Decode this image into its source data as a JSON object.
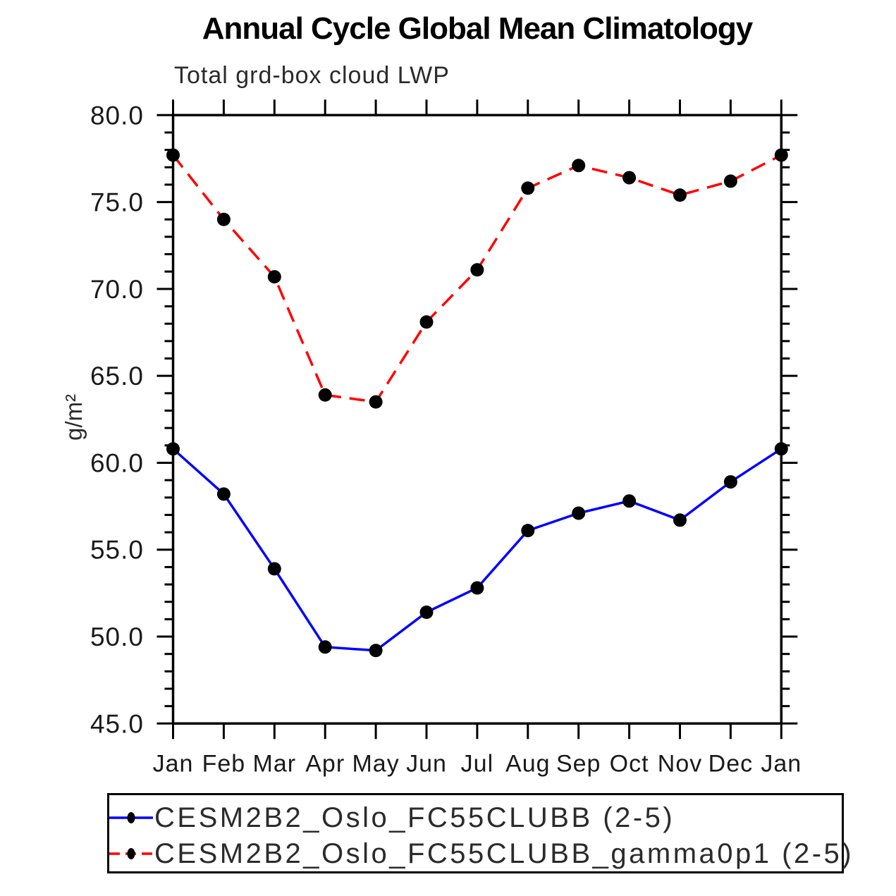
{
  "header": {
    "title": "Annual Cycle Global Mean Climatology",
    "subtitle": "Total grd-box cloud LWP"
  },
  "chart_data": {
    "type": "line",
    "title": "Annual Cycle Global Mean Climatology",
    "subtitle": "Total grd-box cloud LWP",
    "categories": [
      "Jan",
      "Feb",
      "Mar",
      "Apr",
      "May",
      "Jun",
      "Jul",
      "Aug",
      "Sep",
      "Oct",
      "Nov",
      "Dec",
      "Jan"
    ],
    "series": [
      {
        "name": "CESM2B2_Oslo_FC55CLUBB (2-5)",
        "color": "#0000ff",
        "line_style": "solid",
        "marker": "filled-circle",
        "marker_color": "#000000",
        "values": [
          60.8,
          58.2,
          53.9,
          49.4,
          49.2,
          51.4,
          52.8,
          56.1,
          57.1,
          57.8,
          56.7,
          58.9,
          60.8
        ]
      },
      {
        "name": "CESM2B2_Oslo_FC55CLUBB_gamma0p1 (2-5)",
        "color": "#ff0000",
        "line_style": "dashed",
        "marker": "filled-circle",
        "marker_color": "#000000",
        "values": [
          77.7,
          74.0,
          70.7,
          63.9,
          63.5,
          68.1,
          71.1,
          75.8,
          77.1,
          76.4,
          75.4,
          76.2,
          77.7
        ]
      }
    ],
    "xlabel": "",
    "ylabel": "g/m²",
    "ylim": [
      45,
      80
    ],
    "ytick_major_step": 5,
    "ytick_minor_step": 1,
    "ytick_labels": [
      "45.0",
      "50.0",
      "55.0",
      "60.0",
      "65.0",
      "70.0",
      "75.0",
      "80.0"
    ],
    "grid": false,
    "legend_position": "bottom-left",
    "axis_color": "#000000"
  }
}
